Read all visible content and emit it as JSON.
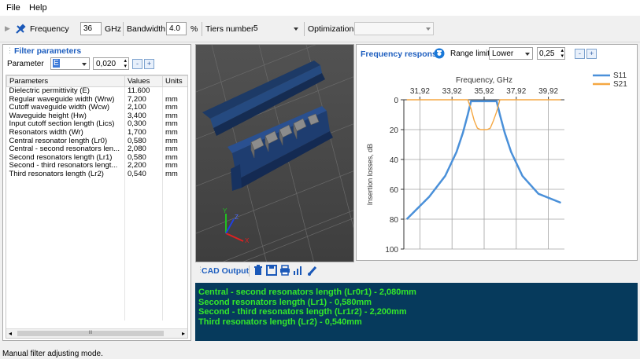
{
  "menu": {
    "file": "File",
    "help": "Help"
  },
  "toolbar": {
    "frequency_label": "Frequency",
    "frequency_value": "36",
    "frequency_unit": "GHz",
    "bandwidth_label": "Bandwidth",
    "bandwidth_value": "4.0",
    "bandwidth_unit": "%",
    "tiers_label": "Tiers number",
    "tiers_value": "5",
    "optimization_label": "Optimization",
    "optimization_value": ""
  },
  "filter_panel": {
    "title": "Filter parameters",
    "parameter_label": "Parameter",
    "parameter_value": "E",
    "step_value": "0,020",
    "minus": "-",
    "plus": "+",
    "columns": [
      "Parameters",
      "Values",
      "Units"
    ],
    "rows": [
      {
        "name": "Dielectric permittivity (E)",
        "value": "11.600",
        "unit": ""
      },
      {
        "name": "Regular waveguide width (Wrw)",
        "value": "7,200",
        "unit": "mm"
      },
      {
        "name": "Cutoff waveguide width (Wcw)",
        "value": "2,100",
        "unit": "mm"
      },
      {
        "name": "Waveguide height (Hw)",
        "value": "3,400",
        "unit": "mm"
      },
      {
        "name": "Input cutoff section length (Lics)",
        "value": "0,300",
        "unit": "mm"
      },
      {
        "name": "Resonators width (Wr)",
        "value": "1,700",
        "unit": "mm"
      },
      {
        "name": "Central resonator length (Lr0)",
        "value": "0,580",
        "unit": "mm"
      },
      {
        "name": "Central - second resonators len...",
        "value": "2,080",
        "unit": "mm"
      },
      {
        "name": "Second resonators length (Lr1)",
        "value": "0,580",
        "unit": "mm"
      },
      {
        "name": "Second - third resonators lengt...",
        "value": "2,200",
        "unit": "mm"
      },
      {
        "name": "Third resonators length (Lr2)",
        "value": "0,540",
        "unit": "mm"
      }
    ],
    "scroll_thumb": "III"
  },
  "freq_panel": {
    "title": "Frequency response",
    "range_limit_label": "Range limit",
    "range_limit_value": "Lower",
    "range_step_value": "0,25",
    "minus": "-",
    "plus": "+"
  },
  "chart_data": {
    "type": "line",
    "xlabel": "Frequency, GHz",
    "ylabel": "Insertion losses, dB",
    "x_ticks": [
      "31,92",
      "33,92",
      "35,92",
      "37,92",
      "39,92"
    ],
    "y_ticks": [
      "0",
      "20",
      "40",
      "60",
      "80",
      "100"
    ],
    "xlim": [
      30.92,
      40.92
    ],
    "ylim": [
      0,
      100
    ],
    "y_inverted": true,
    "grid": true,
    "legend_position": "top-right",
    "series": [
      {
        "name": "S11",
        "color": "#4a90d9",
        "x": [
          31.1,
          32.5,
          33.5,
          34.2,
          34.6,
          34.9,
          35.1,
          36.7,
          36.9,
          37.2,
          37.6,
          38.3,
          39.3,
          40.7
        ],
        "y": [
          80,
          65,
          51,
          35,
          22,
          10,
          1,
          1,
          10,
          22,
          35,
          51,
          63,
          69
        ]
      },
      {
        "name": "S21",
        "color": "#f5a742",
        "x": [
          31.1,
          34.9,
          35.1,
          35.3,
          35.5,
          35.7,
          35.9,
          36.1,
          36.3,
          36.5,
          36.7,
          36.9,
          40.7
        ],
        "y": [
          0,
          0,
          6,
          14,
          19,
          20,
          20,
          20,
          19,
          14,
          8,
          0,
          0
        ]
      }
    ]
  },
  "cad": {
    "title": "CAD Output",
    "lines": [
      "Central - second resonators length (Lr0r1) - 2,080mm",
      "Second resonators length (Lr1) - 0,580mm",
      "Second - third resonators length (Lr1r2) - 2,200mm",
      "Third resonators length (Lr2) - 0,540mm"
    ]
  },
  "axes3d": {
    "y": "Y",
    "z": "Z",
    "x": "X"
  },
  "status": {
    "text": "Manual filter adjusting mode."
  },
  "colors": {
    "accent": "#1f5fbf",
    "console_bg": "#063a5c",
    "console_text": "#34e82a",
    "s11": "#4a90d9",
    "s21": "#f5a742"
  }
}
